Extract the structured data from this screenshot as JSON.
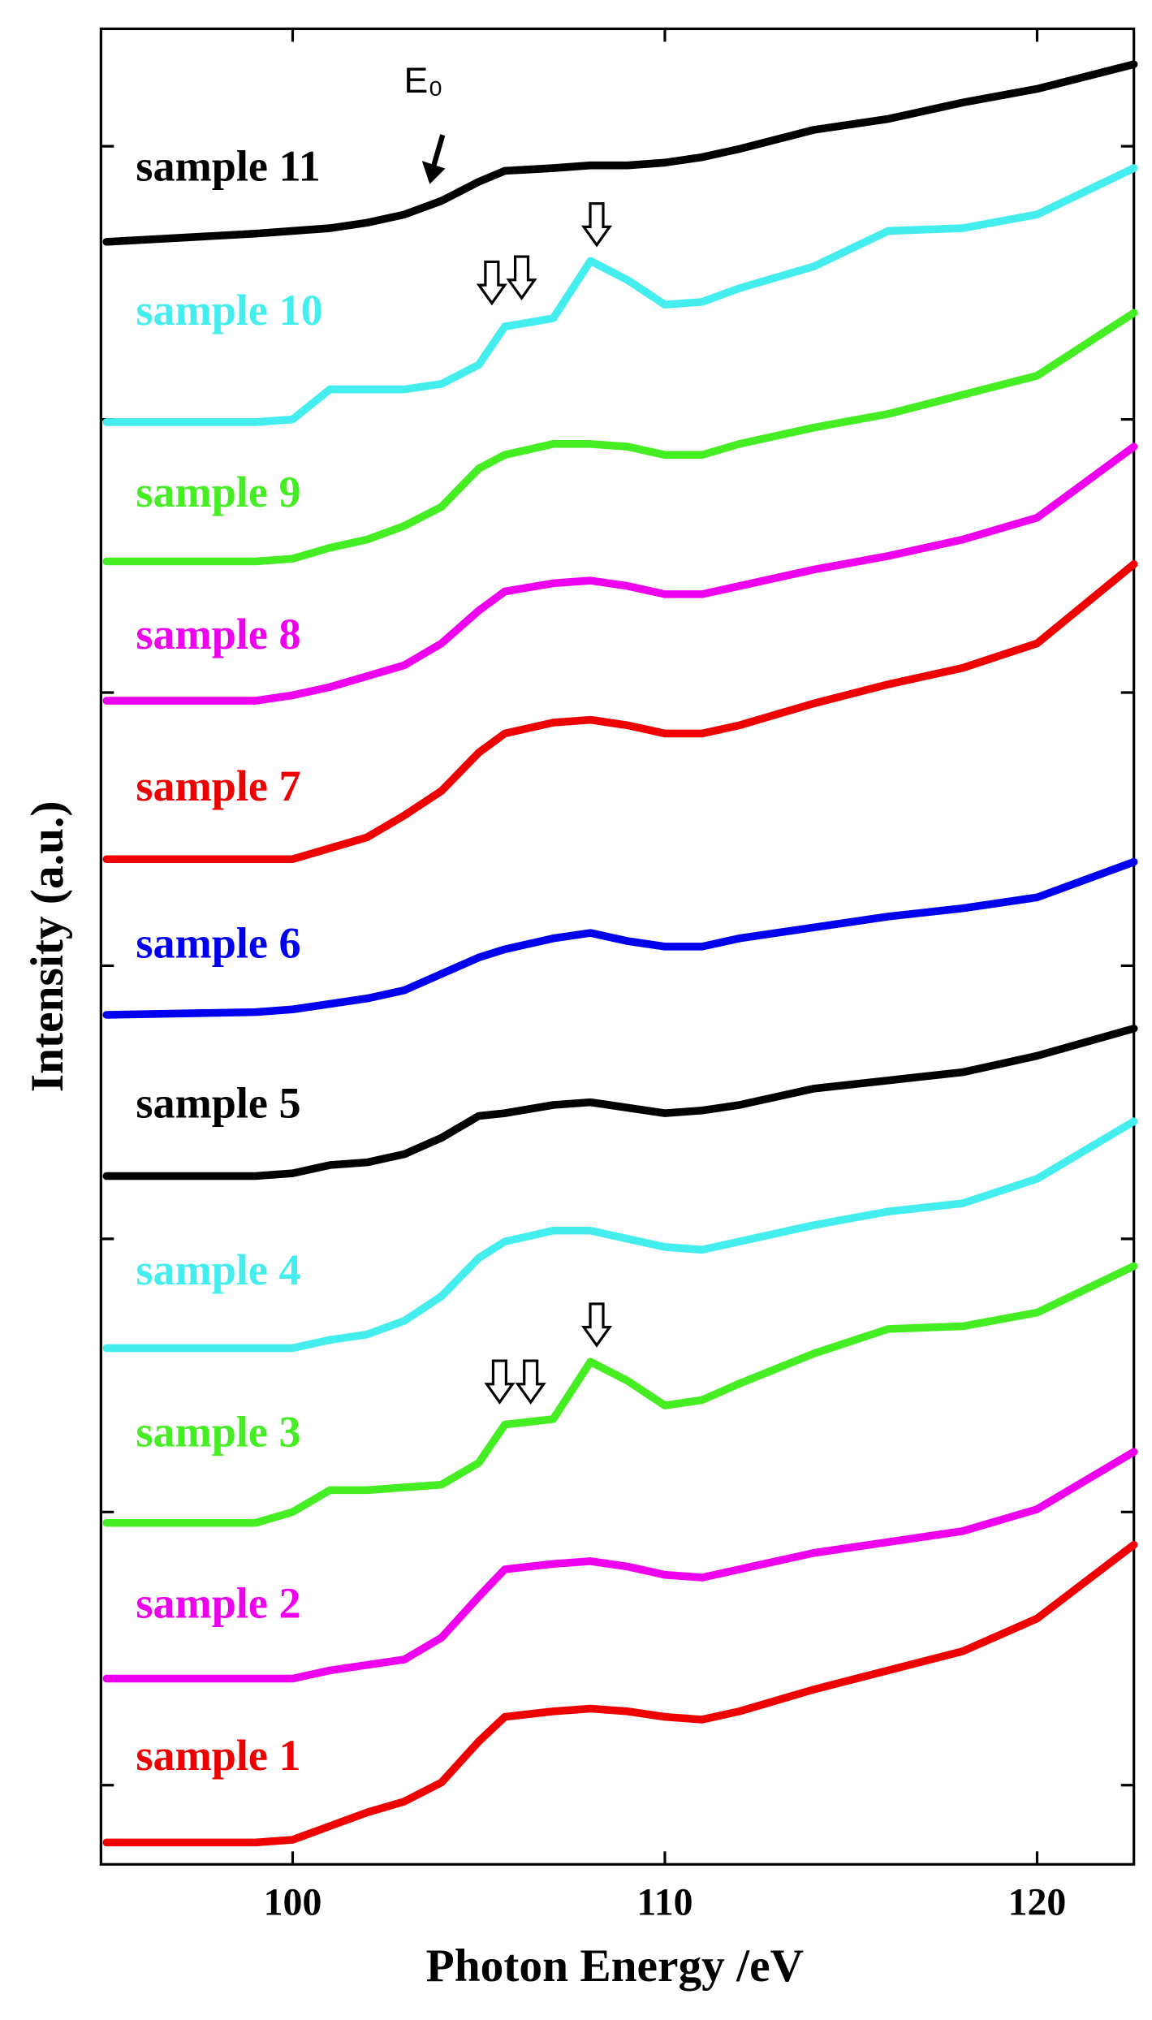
{
  "chart_data": {
    "type": "line",
    "x_label": "Photon Energy /eV",
    "y_label": "Intensity (a.u.)",
    "annotation": "E₀",
    "xlim": [
      94.85,
      122.6
    ],
    "xticks": [
      100,
      110,
      120
    ],
    "ylim": [
      0.71,
      7.43
    ],
    "yticks": [
      1,
      2,
      3,
      4,
      5,
      6,
      7
    ],
    "x": [
      95,
      99,
      100,
      101,
      102,
      103,
      104,
      105,
      105.7,
      107,
      108,
      109,
      110,
      111,
      112,
      114,
      116,
      118,
      120,
      122.6
    ],
    "series": [
      {
        "name": "sample 1",
        "color": "#ee0000",
        "values": [
          0.79,
          0.79,
          0.8,
          0.85,
          0.9,
          0.94,
          1.01,
          1.16,
          1.25,
          1.27,
          1.28,
          1.27,
          1.25,
          1.24,
          1.27,
          1.35,
          1.42,
          1.49,
          1.61,
          1.88
        ]
      },
      {
        "name": "sample 2",
        "color": "#ee00ee",
        "values": [
          1.39,
          1.39,
          1.39,
          1.42,
          1.44,
          1.46,
          1.54,
          1.69,
          1.79,
          1.81,
          1.82,
          1.8,
          1.77,
          1.76,
          1.79,
          1.85,
          1.89,
          1.93,
          2.01,
          2.22
        ]
      },
      {
        "name": "sample 3",
        "color": "#44ee22",
        "values": [
          1.96,
          1.96,
          2.0,
          2.08,
          2.08,
          2.09,
          2.1,
          2.18,
          2.32,
          2.34,
          2.55,
          2.48,
          2.39,
          2.41,
          2.47,
          2.58,
          2.67,
          2.68,
          2.73,
          2.9
        ]
      },
      {
        "name": "sample 4",
        "color": "#44eeee",
        "values": [
          2.6,
          2.6,
          2.6,
          2.63,
          2.65,
          2.7,
          2.79,
          2.93,
          2.99,
          3.03,
          3.03,
          3.0,
          2.97,
          2.96,
          2.99,
          3.05,
          3.1,
          3.13,
          3.22,
          3.43
        ]
      },
      {
        "name": "sample 5",
        "color": "#000000",
        "values": [
          3.23,
          3.23,
          3.24,
          3.27,
          3.28,
          3.31,
          3.37,
          3.45,
          3.46,
          3.49,
          3.5,
          3.48,
          3.46,
          3.47,
          3.49,
          3.55,
          3.58,
          3.61,
          3.67,
          3.77
        ]
      },
      {
        "name": "sample 6",
        "color": "#0000ee",
        "values": [
          3.82,
          3.83,
          3.84,
          3.86,
          3.88,
          3.91,
          3.97,
          4.03,
          4.06,
          4.1,
          4.12,
          4.09,
          4.07,
          4.07,
          4.1,
          4.14,
          4.18,
          4.21,
          4.25,
          4.38
        ]
      },
      {
        "name": "sample 7",
        "color": "#ee0000",
        "values": [
          4.39,
          4.39,
          4.39,
          4.43,
          4.47,
          4.55,
          4.64,
          4.78,
          4.85,
          4.89,
          4.9,
          4.88,
          4.85,
          4.85,
          4.88,
          4.96,
          5.03,
          5.09,
          5.18,
          5.47
        ]
      },
      {
        "name": "sample 8",
        "color": "#ee00ee",
        "values": [
          4.97,
          4.97,
          4.99,
          5.02,
          5.06,
          5.1,
          5.18,
          5.3,
          5.37,
          5.4,
          5.41,
          5.39,
          5.36,
          5.36,
          5.39,
          5.45,
          5.5,
          5.56,
          5.64,
          5.9
        ]
      },
      {
        "name": "sample 9",
        "color": "#44ee22",
        "values": [
          5.48,
          5.48,
          5.49,
          5.53,
          5.56,
          5.61,
          5.68,
          5.82,
          5.87,
          5.91,
          5.91,
          5.9,
          5.87,
          5.87,
          5.91,
          5.97,
          6.02,
          6.09,
          6.16,
          6.39
        ]
      },
      {
        "name": "sample 10",
        "color": "#44eeee",
        "values": [
          5.99,
          5.99,
          6.0,
          6.11,
          6.11,
          6.11,
          6.13,
          6.2,
          6.34,
          6.37,
          6.58,
          6.51,
          6.42,
          6.43,
          6.48,
          6.56,
          6.69,
          6.7,
          6.75,
          6.92
        ]
      },
      {
        "name": "sample 11",
        "color": "#000000",
        "values": [
          6.65,
          6.68,
          6.69,
          6.7,
          6.72,
          6.75,
          6.8,
          6.87,
          6.91,
          6.92,
          6.93,
          6.93,
          6.94,
          6.96,
          6.99,
          7.06,
          7.1,
          7.16,
          7.21,
          7.3
        ]
      }
    ]
  }
}
